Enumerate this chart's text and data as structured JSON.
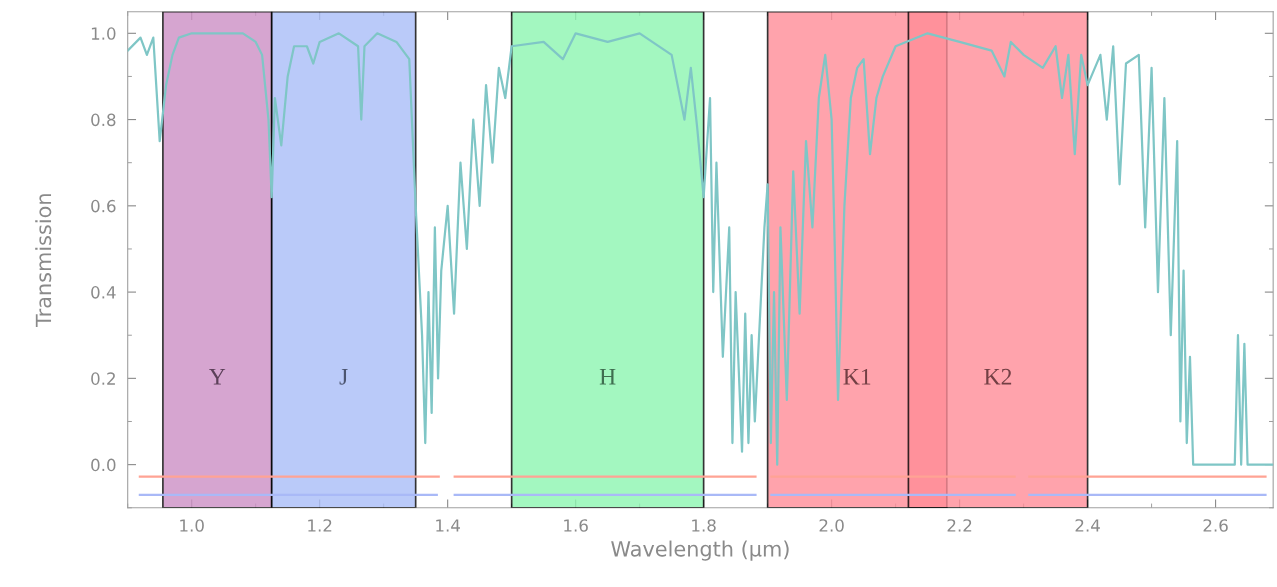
{
  "chart_data": {
    "type": "line",
    "xlabel": "Wavelength (μm)",
    "ylabel": "Transmission",
    "xlim": [
      0.9,
      2.69
    ],
    "ylim": [
      -0.1,
      1.05
    ],
    "xticks": [
      {
        "value": 1.0,
        "label": "1.0"
      },
      1.2,
      1.4,
      1.6,
      1.8,
      {
        "value": 2.0,
        "label": "2.0"
      },
      2.2,
      2.4,
      2.6
    ],
    "yticks": [
      {
        "value": 0.0,
        "label": "0.0"
      },
      0.2,
      0.4,
      0.6,
      0.8,
      {
        "value": 1.0,
        "label": "1.0"
      }
    ],
    "grid": false,
    "legend": false,
    "series": [
      {
        "color": "#7fc6c6",
        "x": [
          0.9,
          0.92,
          0.93,
          0.94,
          0.95,
          0.96,
          0.97,
          0.98,
          1.0,
          1.05,
          1.08,
          1.1,
          1.11,
          1.12,
          1.125,
          1.13,
          1.14,
          1.15,
          1.16,
          1.18,
          1.19,
          1.2,
          1.23,
          1.26,
          1.265,
          1.27,
          1.29,
          1.32,
          1.34,
          1.35,
          1.355,
          1.36,
          1.365,
          1.37,
          1.375,
          1.38,
          1.385,
          1.39,
          1.4,
          1.41,
          1.42,
          1.43,
          1.44,
          1.45,
          1.46,
          1.47,
          1.48,
          1.49,
          1.5,
          1.55,
          1.58,
          1.6,
          1.65,
          1.7,
          1.75,
          1.77,
          1.78,
          1.79,
          1.8,
          1.81,
          1.815,
          1.82,
          1.83,
          1.84,
          1.845,
          1.85,
          1.86,
          1.865,
          1.87,
          1.875,
          1.88,
          1.89,
          1.895,
          1.9,
          1.905,
          1.91,
          1.915,
          1.92,
          1.93,
          1.94,
          1.95,
          1.96,
          1.97,
          1.98,
          1.99,
          2.0,
          2.005,
          2.01,
          2.02,
          2.03,
          2.04,
          2.05,
          2.06,
          2.07,
          2.08,
          2.1,
          2.15,
          2.2,
          2.25,
          2.27,
          2.28,
          2.3,
          2.33,
          2.35,
          2.36,
          2.37,
          2.38,
          2.39,
          2.4,
          2.42,
          2.43,
          2.44,
          2.45,
          2.46,
          2.48,
          2.49,
          2.5,
          2.51,
          2.52,
          2.53,
          2.54,
          2.545,
          2.55,
          2.555,
          2.56,
          2.565,
          2.58,
          2.6,
          2.63,
          2.635,
          2.64,
          2.645,
          2.65,
          2.69
        ],
        "values": [
          0.96,
          0.99,
          0.95,
          0.99,
          0.75,
          0.88,
          0.95,
          0.99,
          1.0,
          1.0,
          1.0,
          0.98,
          0.95,
          0.8,
          0.62,
          0.85,
          0.74,
          0.9,
          0.97,
          0.97,
          0.93,
          0.98,
          1.0,
          0.97,
          0.8,
          0.97,
          1.0,
          0.98,
          0.94,
          0.6,
          0.45,
          0.3,
          0.05,
          0.4,
          0.12,
          0.55,
          0.2,
          0.45,
          0.6,
          0.35,
          0.7,
          0.5,
          0.8,
          0.6,
          0.88,
          0.7,
          0.92,
          0.85,
          0.97,
          0.98,
          0.94,
          1.0,
          0.98,
          1.0,
          0.95,
          0.8,
          0.92,
          0.78,
          0.62,
          0.85,
          0.4,
          0.7,
          0.25,
          0.55,
          0.05,
          0.4,
          0.03,
          0.35,
          0.05,
          0.3,
          0.1,
          0.4,
          0.55,
          0.65,
          0.05,
          0.4,
          0.0,
          0.55,
          0.15,
          0.68,
          0.35,
          0.75,
          0.55,
          0.85,
          0.95,
          0.8,
          0.5,
          0.15,
          0.6,
          0.85,
          0.92,
          0.94,
          0.72,
          0.85,
          0.9,
          0.97,
          1.0,
          0.98,
          0.96,
          0.9,
          0.98,
          0.95,
          0.92,
          0.97,
          0.85,
          0.95,
          0.72,
          0.95,
          0.88,
          0.95,
          0.8,
          0.97,
          0.65,
          0.93,
          0.95,
          0.55,
          0.92,
          0.4,
          0.85,
          0.3,
          0.75,
          0.1,
          0.45,
          0.05,
          0.25,
          0.0,
          0.0,
          0.0,
          0.0,
          0.3,
          0.0,
          0.28,
          0.0,
          0.0
        ]
      },
      {
        "color": "#ffa394",
        "x": [
          0.919,
          1.386,
          1.398,
          1.411,
          1.881,
          1.894,
          1.906,
          2.286,
          2.298,
          2.309,
          2.678
        ],
        "values": [
          -0.028,
          -0.028,
          null,
          -0.028,
          -0.028,
          null,
          -0.028,
          -0.028,
          null,
          -0.028,
          -0.028
        ]
      },
      {
        "color": "#a9b9f7",
        "x": [
          0.919,
          1.383,
          1.398,
          1.411,
          1.881,
          1.894,
          1.906,
          2.286,
          2.298,
          2.309,
          2.678
        ],
        "values": [
          -0.07,
          -0.07,
          null,
          -0.07,
          -0.07,
          null,
          -0.07,
          -0.07,
          null,
          -0.07,
          -0.07
        ]
      }
    ],
    "bands": [
      {
        "axis": "x",
        "from": 0.955,
        "to": 1.125,
        "label": "Y",
        "color": "#cc8fc5"
      },
      {
        "axis": "x",
        "from": 1.125,
        "to": 1.35,
        "label": "J",
        "color": "#a9bdf8"
      },
      {
        "axis": "x",
        "from": 1.5,
        "to": 1.8,
        "label": "H",
        "color": "#8cf5b1"
      },
      {
        "axis": "x",
        "from": 1.9,
        "to": 2.18,
        "label": "K1",
        "color": "#ff8d98"
      },
      {
        "axis": "x",
        "from": 2.12,
        "to": 2.4,
        "label": "K2",
        "color": "#ff8d98"
      }
    ]
  }
}
